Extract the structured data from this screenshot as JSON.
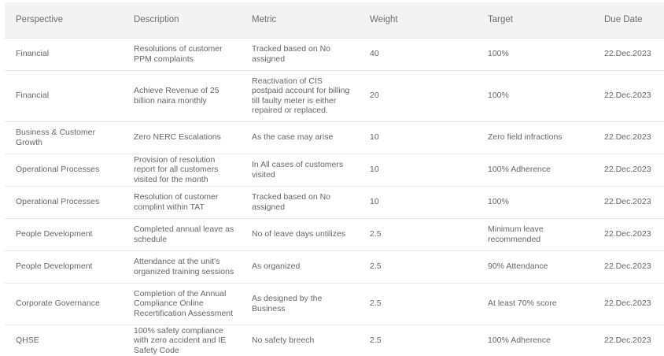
{
  "table": {
    "headers": {
      "perspective": "Perspective",
      "description": "Description",
      "metric": "Metric",
      "weight": "Weight",
      "target": "Target",
      "due_date": "Due Date"
    },
    "rows": [
      {
        "perspective": "Financial",
        "description": "Resolutions of customer PPM complaints",
        "metric": "Tracked based on No assigned",
        "weight": "40",
        "target": "100%",
        "due_date": "22.Dec.2023"
      },
      {
        "perspective": "Financial",
        "description": "Achieve Revenue of 25 billion naira monthly",
        "metric": "Reactivation of CIS postpaid account for billing till faulty meter is either repaired or replaced.",
        "weight": "20",
        "target": "100%",
        "due_date": "22.Dec.2023"
      },
      {
        "perspective": "Business & Customer Growth",
        "description": "Zero NERC Escalations",
        "metric": "As the case may arise",
        "weight": "10",
        "target": "Zero field infractions",
        "due_date": "22.Dec.2023"
      },
      {
        "perspective": "Operational Processes",
        "description": "Provision of resolution report for all customers visited for the month",
        "metric": "In All cases of customers visited",
        "weight": "10",
        "target": "100% Adherence",
        "due_date": "22.Dec.2023"
      },
      {
        "perspective": "Operational Processes",
        "description": "Resolution of customer complint within TAT",
        "metric": "Tracked based on No assigned",
        "weight": "10",
        "target": "100%",
        "due_date": "22.Dec.2023"
      },
      {
        "perspective": "People Development",
        "description": "Completed annual leave as schedule",
        "metric": "No of leave days untilizes",
        "weight": "2.5",
        "target": "Minimum leave recommended",
        "due_date": "22.Dec.2023"
      },
      {
        "perspective": "People Development",
        "description": "Attendance at the unit's organized training sessions",
        "metric": "As organized",
        "weight": "2.5",
        "target": "90% Attendance",
        "due_date": "22.Dec.2023"
      },
      {
        "perspective": "Corporate Governance",
        "description": "Completion of the Annual Compliance Online Recertification Assessment",
        "metric": "As designed by the Business",
        "weight": "2.5",
        "target": "At least 70% score",
        "due_date": "22.Dec.2023"
      },
      {
        "perspective": "QHSE",
        "description": " 100% safety compliance with zero accident and IE Safety Code",
        "metric": "No safety breech",
        "weight": "2.5",
        "target": "100% Adherence",
        "due_date": "22.Dec.2023"
      }
    ]
  }
}
